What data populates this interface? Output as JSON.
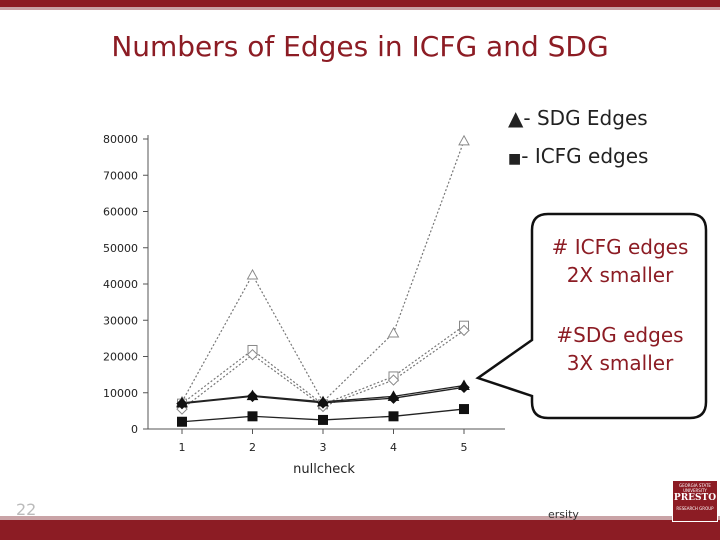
{
  "slide": {
    "title": "Numbers of Edges in ICFG and SDG",
    "number": "22",
    "footer_text": "ersity",
    "accent_color": "#8c1c24"
  },
  "legend": {
    "sdg_label": "SDG Edges",
    "icfg_label": "ICFG edges",
    "sdg_marker": "▲",
    "icfg_marker": "■",
    "separator": "-"
  },
  "callout": {
    "line1": "# ICFG edges",
    "line2": "2X smaller",
    "line3": "#SDG edges",
    "line4": "3X smaller"
  },
  "logo": {
    "top_text": "GEORGIA STATE UNIVERSITY",
    "name": "PRESTO",
    "bottom_text": "RESEARCH GROUP"
  },
  "chart_data": {
    "type": "line",
    "xlabel": "nullcheck",
    "ylabel": "",
    "categories": [
      "1",
      "2",
      "3",
      "4",
      "5"
    ],
    "ylim": [
      0,
      80000
    ],
    "yticks": [
      0,
      10000,
      20000,
      30000,
      40000,
      50000,
      60000,
      70000,
      80000
    ],
    "series": [
      {
        "marker": "triangle-open",
        "style": "dotted",
        "values": [
          7500,
          42500,
          7500,
          26500,
          79500
        ]
      },
      {
        "marker": "square-open",
        "style": "dotted",
        "values": [
          7000,
          21800,
          6800,
          14500,
          28500
        ]
      },
      {
        "marker": "diamond-open",
        "style": "dotted",
        "values": [
          5500,
          20500,
          6200,
          13500,
          27200
        ]
      },
      {
        "marker": "triangle-filled",
        "style": "solid",
        "values": [
          7200,
          9200,
          7500,
          9000,
          12000
        ]
      },
      {
        "marker": "diamond-filled",
        "style": "solid",
        "values": [
          7000,
          9000,
          7200,
          8500,
          11500
        ]
      },
      {
        "marker": "square-filled",
        "style": "solid",
        "values": [
          2000,
          3500,
          2500,
          3500,
          5500
        ]
      }
    ]
  }
}
